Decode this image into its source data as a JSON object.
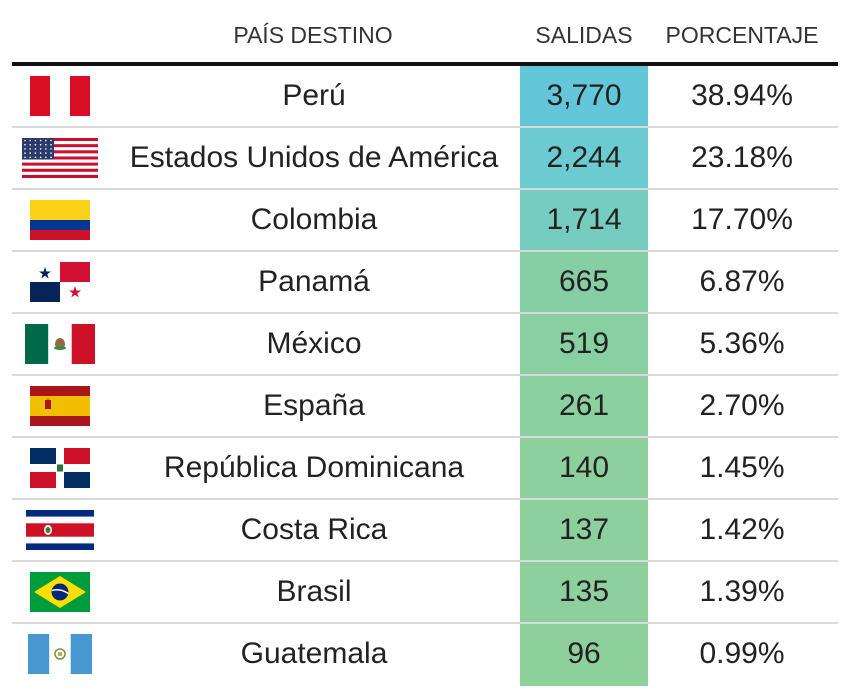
{
  "header": {
    "country": "PAÍS DESTINO",
    "salidas": "SALIDAS",
    "porcentaje": "PORCENTAJE"
  },
  "chart_data": {
    "type": "table",
    "columns": [
      "PAÍS DESTINO",
      "SALIDAS",
      "PORCENTAJE"
    ],
    "rows": [
      {
        "flag": "peru-flag-icon",
        "country": "Perú",
        "salidas": "3,770",
        "value": 3770,
        "porcentaje": "38.94%",
        "cell_color": "#64c7d9"
      },
      {
        "flag": "usa-flag-icon",
        "country": "Estados Unidos de América",
        "salidas": "2,244",
        "value": 2244,
        "porcentaje": "23.18%",
        "cell_color": "#6ccbd0"
      },
      {
        "flag": "colombia-flag-icon",
        "country": "Colombia",
        "salidas": "1,714",
        "value": 1714,
        "porcentaje": "17.70%",
        "cell_color": "#77ccc0"
      },
      {
        "flag": "panama-flag-icon",
        "country": "Panamá",
        "salidas": "665",
        "value": 665,
        "porcentaje": "6.87%",
        "cell_color": "#86cea4"
      },
      {
        "flag": "mexico-flag-icon",
        "country": "México",
        "salidas": "519",
        "value": 519,
        "porcentaje": "5.36%",
        "cell_color": "#88cfa2"
      },
      {
        "flag": "spain-flag-icon",
        "country": "España",
        "salidas": "261",
        "value": 261,
        "porcentaje": "2.70%",
        "cell_color": "#8bd09f"
      },
      {
        "flag": "dominican-republic-flag-icon",
        "country": "República Dominicana",
        "salidas": "140",
        "value": 140,
        "porcentaje": "1.45%",
        "cell_color": "#8dd09d"
      },
      {
        "flag": "costa-rica-flag-icon",
        "country": "Costa Rica",
        "salidas": "137",
        "value": 137,
        "porcentaje": "1.42%",
        "cell_color": "#8dd09d"
      },
      {
        "flag": "brazil-flag-icon",
        "country": "Brasil",
        "salidas": "135",
        "value": 135,
        "porcentaje": "1.39%",
        "cell_color": "#8dd09d"
      },
      {
        "flag": "guatemala-flag-icon",
        "country": "Guatemala",
        "salidas": "96",
        "value": 96,
        "porcentaje": "0.99%",
        "cell_color": "#8ed09c"
      }
    ]
  }
}
